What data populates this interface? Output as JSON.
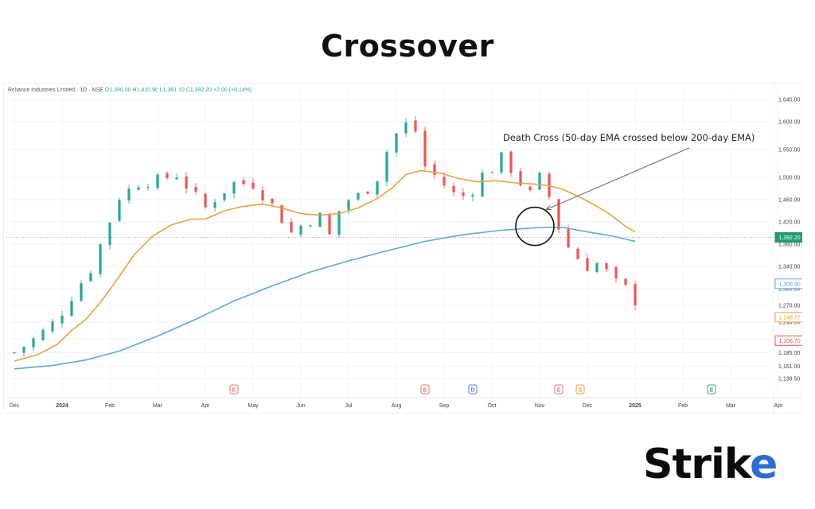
{
  "page": {
    "title": "Crossover",
    "brand": "Strike"
  },
  "colors": {
    "up": "#26a69a",
    "down": "#ef5350",
    "ema50": "#e8a33d",
    "ema200": "#5aa9d6",
    "price_badge": "#1f9d6f",
    "event_red": "#e57373",
    "event_blue": "#5c7cfa",
    "event_orange": "#f0a040",
    "event_green": "#3aa57f"
  },
  "chart_data": {
    "type": "line",
    "title": "Reliance Industries Limited · 1D · NSE",
    "ohlc_readout": {
      "open": "O1,390.00",
      "high": "H1,410.90",
      "low": "L1,381.10",
      "close": "C1,392.20",
      "change": "+2.00 (+0.14%)"
    },
    "x_labels": [
      "Dec",
      "2024",
      "Feb",
      "Mar",
      "Apr",
      "May",
      "Jun",
      "Jul",
      "Aug",
      "Sep",
      "Oct",
      "Nov",
      "Dec",
      "2025",
      "Feb",
      "Mar",
      "Apr"
    ],
    "y_ticks": [
      "1,640.00",
      "1,600.00",
      "1,550.00",
      "1,500.00",
      "1,460.00",
      "1,420.00",
      "1,380.00",
      "1,340.00",
      "1,300.00",
      "1,270.00",
      "1,240.00",
      "1,210.00",
      "1,185.00",
      "1,161.00",
      "1,138.50"
    ],
    "y_tick_values": [
      1640,
      1600,
      1550,
      1500,
      1460,
      1420,
      1380,
      1340,
      1300,
      1270,
      1240,
      1210,
      1185,
      1161,
      1138.5
    ],
    "ylim": [
      1130,
      1650
    ],
    "price_badges": [
      {
        "label": "1,392.20",
        "value": 1392.2,
        "style": "filled",
        "color": "#1f9d6f"
      },
      {
        "label": "1,308.90",
        "value": 1308.9,
        "style": "outline",
        "color": "#5aa9d6"
      },
      {
        "label": "1,248.77",
        "value": 1248.77,
        "style": "outline",
        "color": "#e8a33d"
      },
      {
        "label": "1,206.70",
        "value": 1206.7,
        "style": "outline",
        "color": "#ef5350"
      }
    ],
    "current_price": 1392.2,
    "annotation": {
      "text": "Death Cross (50-day EMA crossed below 200-day EMA)",
      "target_month": 10.9,
      "target_value": 1412
    },
    "event_markers": [
      {
        "month": 4.6,
        "letter": "E",
        "color": "#e57373"
      },
      {
        "month": 8.6,
        "letter": "E",
        "color": "#e57373"
      },
      {
        "month": 9.6,
        "letter": "D",
        "color": "#5c7cfa"
      },
      {
        "month": 11.4,
        "letter": "E",
        "color": "#e57373"
      },
      {
        "month": 11.85,
        "letter": "S",
        "color": "#f0a040"
      },
      {
        "month": 14.6,
        "letter": "E",
        "color": "#3aa57f"
      }
    ],
    "candles": {
      "from_month": 0.0,
      "to_month": 11.45,
      "price_path": [
        [
          0.0,
          1185
        ],
        [
          0.5,
          1215
        ],
        [
          0.9,
          1245
        ],
        [
          1.3,
          1300
        ],
        [
          1.6,
          1335
        ],
        [
          1.85,
          1390
        ],
        [
          2.2,
          1465
        ],
        [
          2.6,
          1490
        ],
        [
          3.0,
          1495
        ],
        [
          3.4,
          1505
        ],
        [
          3.75,
          1470
        ],
        [
          4.0,
          1445
        ],
        [
          4.3,
          1470
        ],
        [
          4.6,
          1490
        ],
        [
          5.0,
          1488
        ],
        [
          5.4,
          1450
        ],
        [
          5.8,
          1400
        ],
        [
          6.1,
          1420
        ],
        [
          6.4,
          1430
        ],
        [
          6.6,
          1395
        ],
        [
          6.8,
          1440
        ],
        [
          7.0,
          1460
        ],
        [
          7.3,
          1470
        ],
        [
          7.6,
          1500
        ],
        [
          7.9,
          1570
        ],
        [
          8.2,
          1595
        ],
        [
          8.45,
          1580
        ],
        [
          8.6,
          1520
        ],
        [
          8.9,
          1495
        ],
        [
          9.2,
          1470
        ],
        [
          9.5,
          1465
        ],
        [
          9.8,
          1505
        ],
        [
          10.0,
          1515
        ],
        [
          10.2,
          1535
        ],
        [
          10.4,
          1515
        ],
        [
          10.6,
          1490
        ],
        [
          10.8,
          1470
        ],
        [
          11.0,
          1500
        ],
        [
          11.2,
          1465
        ],
        [
          11.35,
          1420
        ],
        [
          11.55,
          1380
        ],
        [
          11.8,
          1355
        ],
        [
          12.0,
          1340
        ],
        [
          12.2,
          1345
        ],
        [
          12.4,
          1330
        ],
        [
          12.6,
          1310
        ],
        [
          12.8,
          1300
        ],
        [
          13.0,
          1278
        ]
      ]
    },
    "series": [
      {
        "name": "50-day EMA",
        "color": "#e8a33d",
        "points": [
          [
            0.0,
            1170
          ],
          [
            0.5,
            1182
          ],
          [
            0.9,
            1200
          ],
          [
            1.2,
            1225
          ],
          [
            1.5,
            1245
          ],
          [
            1.8,
            1275
          ],
          [
            2.1,
            1310
          ],
          [
            2.5,
            1360
          ],
          [
            2.9,
            1395
          ],
          [
            3.3,
            1415
          ],
          [
            3.7,
            1425
          ],
          [
            4.0,
            1425
          ],
          [
            4.4,
            1440
          ],
          [
            4.8,
            1448
          ],
          [
            5.2,
            1452
          ],
          [
            5.6,
            1445
          ],
          [
            6.0,
            1435
          ],
          [
            6.4,
            1432
          ],
          [
            6.8,
            1435
          ],
          [
            7.2,
            1445
          ],
          [
            7.6,
            1462
          ],
          [
            7.9,
            1480
          ],
          [
            8.2,
            1505
          ],
          [
            8.5,
            1512
          ],
          [
            8.9,
            1508
          ],
          [
            9.3,
            1498
          ],
          [
            9.7,
            1492
          ],
          [
            10.1,
            1494
          ],
          [
            10.5,
            1490
          ],
          [
            10.9,
            1488
          ],
          [
            11.2,
            1485
          ],
          [
            11.5,
            1478
          ],
          [
            11.9,
            1462
          ],
          [
            12.2,
            1448
          ],
          [
            12.5,
            1432
          ],
          [
            12.8,
            1412
          ],
          [
            13.0,
            1402
          ]
        ]
      },
      {
        "name": "200-day EMA",
        "color": "#5aa9d6",
        "points": [
          [
            0.0,
            1156
          ],
          [
            0.8,
            1162
          ],
          [
            1.5,
            1172
          ],
          [
            2.2,
            1188
          ],
          [
            3.0,
            1215
          ],
          [
            3.8,
            1245
          ],
          [
            4.6,
            1278
          ],
          [
            5.4,
            1305
          ],
          [
            6.2,
            1330
          ],
          [
            7.0,
            1350
          ],
          [
            7.8,
            1368
          ],
          [
            8.6,
            1385
          ],
          [
            9.4,
            1397
          ],
          [
            10.2,
            1405
          ],
          [
            11.0,
            1410
          ],
          [
            11.5,
            1410
          ],
          [
            12.0,
            1402
          ],
          [
            12.5,
            1395
          ],
          [
            13.0,
            1385
          ]
        ]
      }
    ],
    "grid": true,
    "legend": "none"
  }
}
